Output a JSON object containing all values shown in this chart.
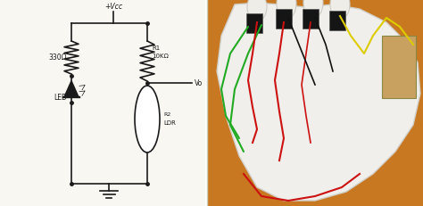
{
  "bg_color": "#ffffff",
  "circuit_bg": "#f5f5f0",
  "labels": {
    "vcc": "+Vcc",
    "r1": "R1",
    "r1_val": "10KΩ",
    "r2": "R2",
    "ldr": "LDR",
    "res330": "330Ω",
    "led": "LED",
    "vo": "Vo"
  },
  "line_color": "#1a1a1a",
  "orange_bg": "#c87820",
  "glove_white": "#f0f0ee",
  "glove_edge": "#cccccc",
  "wire_green": "#22aa22",
  "wire_red": "#cc1111",
  "wire_yellow": "#ddcc00",
  "wire_black": "#111111",
  "sensor_black": "#111111",
  "panel_split": 0.49
}
